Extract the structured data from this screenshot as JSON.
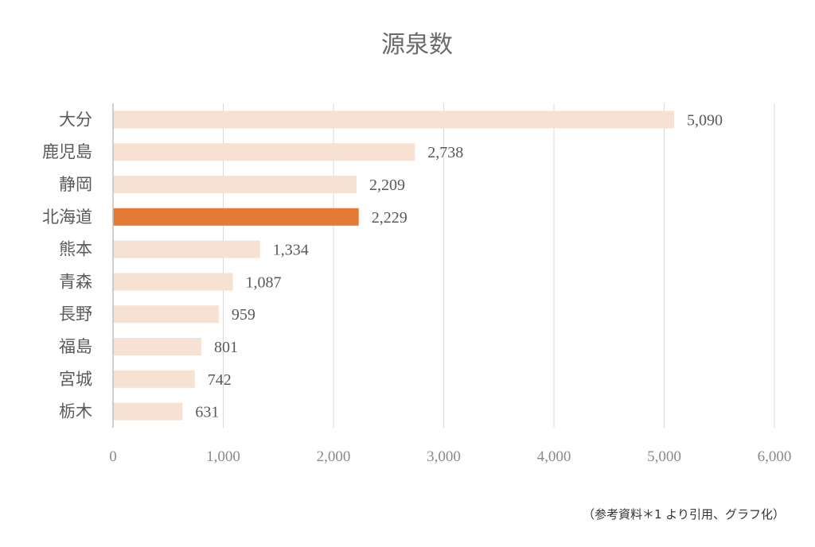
{
  "chart_data": {
    "type": "bar",
    "orientation": "horizontal",
    "title": "源泉数",
    "categories": [
      "大分",
      "鹿児島",
      "静岡",
      "北海道",
      "熊本",
      "青森",
      "長野",
      "福島",
      "宮城",
      "栃木"
    ],
    "values": [
      5090,
      2738,
      2209,
      2229,
      1334,
      1087,
      959,
      801,
      742,
      631
    ],
    "value_labels": [
      "5,090",
      "2,738",
      "2,209",
      "2,229",
      "1,334",
      "1,087",
      "959",
      "801",
      "742",
      "631"
    ],
    "highlight_category": "北海道",
    "xlim": [
      0,
      6000
    ],
    "x_ticks": [
      0,
      1000,
      2000,
      3000,
      4000,
      5000,
      6000
    ],
    "x_tick_labels": [
      "0",
      "1,000",
      "2,000",
      "3,000",
      "4,000",
      "5,000",
      "6,000"
    ],
    "grid": "vertical",
    "colors": {
      "bar": "#f7e1d3",
      "highlight": "#e47a36",
      "grid": "#d9d9d9",
      "axis": "#bfbfbf"
    }
  },
  "footer": {
    "source": "（参考資料＊1 より引用、グラフ化）"
  }
}
